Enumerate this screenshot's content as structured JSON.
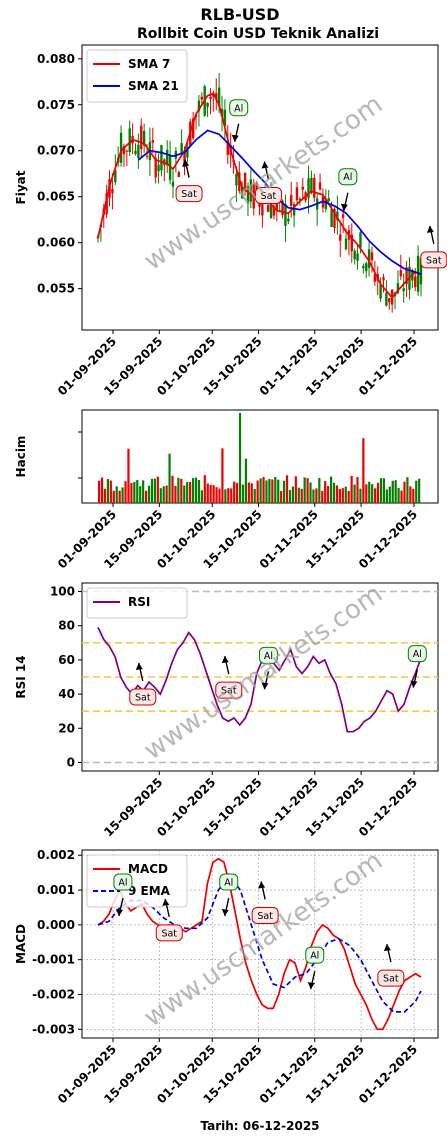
{
  "title": "RLB-USD",
  "subtitle": "Rollbit Coin USD Teknik Analizi",
  "footer": "Tarih: 06-12-2025",
  "watermark": "www.uscmarkets.com",
  "colors": {
    "sma7": "#ee0000",
    "sma21": "#0000dd",
    "rsi": "#800080",
    "macd": "#ee0000",
    "ema9": "#0000dd",
    "up": "#008000",
    "down": "#ee0000",
    "guide": "#f5c542"
  },
  "chart_data": [
    {
      "name": "price",
      "type": "line",
      "ylabel": "Fiyat",
      "ylim": [
        0.0505,
        0.0815
      ],
      "yticks": [
        "0.055",
        "0.060",
        "0.065",
        "0.070",
        "0.075",
        "0.080"
      ],
      "ytick_values": [
        0.055,
        0.06,
        0.065,
        0.07,
        0.075,
        0.08
      ],
      "xticks": [
        "01-09-2025",
        "15-09-2025",
        "01-10-2025",
        "15-10-2025",
        "01-11-2025",
        "15-11-2025",
        "01-12-2025"
      ],
      "legend_position": "top-left",
      "series": [
        {
          "name": "SMA 7",
          "days": [
            6,
            10,
            14,
            18,
            22,
            26,
            30,
            32,
            36,
            40,
            44,
            46,
            48,
            50,
            52,
            54,
            56,
            60,
            64,
            68,
            72,
            76,
            80,
            84,
            88,
            92,
            96,
            100,
            104,
            108,
            110,
            112,
            114,
            116,
            118
          ],
          "values": [
            0.0605,
            0.0662,
            0.07,
            0.0712,
            0.0708,
            0.069,
            0.0686,
            0.068,
            0.07,
            0.074,
            0.076,
            0.0762,
            0.075,
            0.0725,
            0.07,
            0.068,
            0.066,
            0.065,
            0.0648,
            0.0635,
            0.0632,
            0.0645,
            0.0656,
            0.0652,
            0.0632,
            0.0612,
            0.0598,
            0.058,
            0.0555,
            0.054,
            0.0548,
            0.0555,
            0.0562,
            0.0568,
            0.0565
          ]
        },
        {
          "name": "SMA 21",
          "days": [
            20,
            24,
            28,
            32,
            36,
            40,
            44,
            48,
            52,
            56,
            60,
            64,
            68,
            72,
            76,
            80,
            84,
            88,
            92,
            96,
            100,
            104,
            108,
            112,
            116,
            118
          ],
          "values": [
            0.069,
            0.07,
            0.0698,
            0.0694,
            0.0698,
            0.0712,
            0.0722,
            0.0718,
            0.0705,
            0.0692,
            0.0678,
            0.0665,
            0.0648,
            0.0638,
            0.0636,
            0.064,
            0.0645,
            0.064,
            0.0632,
            0.0618,
            0.0602,
            0.059,
            0.058,
            0.0572,
            0.0568,
            0.0566
          ]
        }
      ],
      "annotations": [
        {
          "label": "Al",
          "day": 38,
          "value": 0.0738
        },
        {
          "label": "Sat",
          "day": 23,
          "value": 0.0662
        },
        {
          "label": "Sat",
          "day": 47,
          "value": 0.066
        },
        {
          "label": "Al",
          "day": 71,
          "value": 0.0663
        },
        {
          "label": "Sat",
          "day": 97,
          "value": 0.059
        }
      ]
    },
    {
      "name": "volume",
      "type": "bar",
      "ylabel": "Hacim",
      "xticks": [
        "01-09-2025",
        "15-09-2025",
        "01-10-2025",
        "15-10-2025",
        "01-11-2025",
        "15-11-2025",
        "01-12-2025"
      ]
    },
    {
      "name": "rsi",
      "type": "line",
      "ylabel": "RSI 14",
      "ylim": [
        -5,
        105
      ],
      "yticks": [
        "0",
        "20",
        "40",
        "60",
        "80",
        "100"
      ],
      "ytick_values": [
        0,
        20,
        40,
        60,
        80,
        100
      ],
      "guides": [
        30,
        50,
        70
      ],
      "xticks": [
        "15-09-2025",
        "01-10-2025",
        "15-10-2025",
        "01-11-2025",
        "15-11-2025",
        "01-12-2025"
      ],
      "legend_position": "top-left",
      "series": [
        {
          "name": "RSI",
          "days": [
            4,
            6,
            8,
            10,
            12,
            14,
            16,
            18,
            20,
            22,
            24,
            26,
            28,
            30,
            32,
            34,
            36,
            38,
            40,
            42,
            44,
            46,
            48,
            50,
            52,
            54,
            56,
            58,
            60,
            62,
            64,
            66,
            68,
            70,
            72,
            74,
            76,
            78,
            80,
            82,
            84,
            86,
            88,
            90,
            92,
            94,
            96,
            98,
            100,
            102,
            104,
            106,
            108,
            110,
            112,
            114,
            116,
            118
          ],
          "values": [
            79,
            72,
            68,
            62,
            50,
            44,
            40,
            45,
            42,
            47,
            44,
            40,
            48,
            58,
            66,
            70,
            76,
            72,
            64,
            54,
            44,
            34,
            26,
            24,
            26,
            22,
            26,
            34,
            52,
            60,
            64,
            58,
            54,
            60,
            66,
            56,
            52,
            56,
            62,
            58,
            60,
            52,
            46,
            34,
            18,
            18,
            20,
            24,
            26,
            30,
            36,
            42,
            40,
            30,
            34,
            44,
            52,
            61
          ]
        }
      ],
      "annotations": [
        {
          "label": "Sat",
          "day": 9,
          "value": 43
        },
        {
          "label": "Sat",
          "day": 35,
          "value": 47
        },
        {
          "label": "Al",
          "day": 47,
          "value": 58
        },
        {
          "label": "Al",
          "day": 92,
          "value": 59
        },
        {
          "label": "Al",
          "day": 108,
          "value": 60
        }
      ]
    },
    {
      "name": "macd",
      "type": "line",
      "ylabel": "MACD",
      "ylim": [
        -0.00325,
        0.00215
      ],
      "yticks": [
        "-0.003",
        "-0.002",
        "-0.001",
        "0.000",
        "0.001",
        "0.002"
      ],
      "ytick_values": [
        -0.003,
        -0.002,
        -0.001,
        0.0,
        0.001,
        0.002
      ],
      "xticks": [
        "01-09-2025",
        "15-09-2025",
        "01-10-2025",
        "15-10-2025",
        "01-11-2025",
        "15-11-2025",
        "01-12-2025"
      ],
      "legend_position": "top-left",
      "series": [
        {
          "name": "MACD",
          "days": [
            0,
            2,
            4,
            6,
            8,
            10,
            12,
            14,
            16,
            18,
            20,
            22,
            24,
            26,
            28,
            30,
            32,
            34,
            36,
            38,
            40,
            42,
            44,
            46,
            48,
            50,
            52,
            54,
            56,
            58,
            60,
            62,
            64,
            66,
            68,
            70,
            72,
            74,
            76,
            78,
            80,
            82,
            84,
            86,
            88,
            90,
            92,
            94,
            96,
            98,
            100,
            102,
            104,
            106,
            108,
            110,
            112,
            114,
            116,
            118
          ],
          "values": [
            0.0,
            0.0001,
            0.0003,
            0.0007,
            0.001,
            0.0006,
            0.0004,
            0.0005,
            0.0006,
            0.0003,
            0.0001,
            0.0,
            -0.0001,
            0.0,
            -0.0001,
            -0.0001,
            -0.0002,
            -0.0001,
            0.0,
            0.0001,
            0.0012,
            0.0018,
            0.0019,
            0.0018,
            0.0012,
            0.0004,
            -0.0004,
            -0.0011,
            -0.0016,
            -0.002,
            -0.0023,
            -0.0024,
            -0.0024,
            -0.002,
            -0.0014,
            -0.001,
            -0.0011,
            -0.0016,
            -0.0012,
            -0.0006,
            -0.0002,
            0.0,
            -0.0001,
            -0.0003,
            -0.0004,
            -0.0007,
            -0.0012,
            -0.0017,
            -0.002,
            -0.0023,
            -0.0027,
            -0.003,
            -0.003,
            -0.0027,
            -0.0023,
            -0.0019,
            -0.0016,
            -0.0015,
            -0.0014,
            -0.0015
          ]
        },
        {
          "name": "9 EMA",
          "days": [
            0,
            4,
            8,
            12,
            16,
            20,
            24,
            28,
            32,
            36,
            40,
            44,
            48,
            52,
            56,
            60,
            64,
            68,
            72,
            76,
            80,
            84,
            88,
            92,
            96,
            100,
            104,
            108,
            112,
            116,
            118
          ],
          "values": [
            0.0,
            0.0001,
            0.0005,
            0.0007,
            0.0007,
            0.0005,
            0.0002,
            0.0,
            -0.0001,
            -0.0001,
            0.0002,
            0.001,
            0.0014,
            0.001,
            0.0,
            -0.001,
            -0.0017,
            -0.0018,
            -0.0015,
            -0.0014,
            -0.001,
            -0.0005,
            -0.0004,
            -0.0006,
            -0.001,
            -0.0016,
            -0.0022,
            -0.0025,
            -0.0025,
            -0.0022,
            -0.0019
          ]
        }
      ],
      "annotations": [
        {
          "label": "Al",
          "day": 3,
          "value": 0.001
        },
        {
          "label": "Sat",
          "day": 17,
          "value": 0.0
        },
        {
          "label": "Al",
          "day": 35,
          "value": 0.001
        },
        {
          "label": "Sat",
          "day": 46,
          "value": 0.0005
        },
        {
          "label": "Al",
          "day": 61,
          "value": -0.0011
        },
        {
          "label": "Sat",
          "day": 84,
          "value": -0.0013
        },
        {
          "label": "Al",
          "day": 104,
          "value": -0.0015
        }
      ]
    }
  ]
}
